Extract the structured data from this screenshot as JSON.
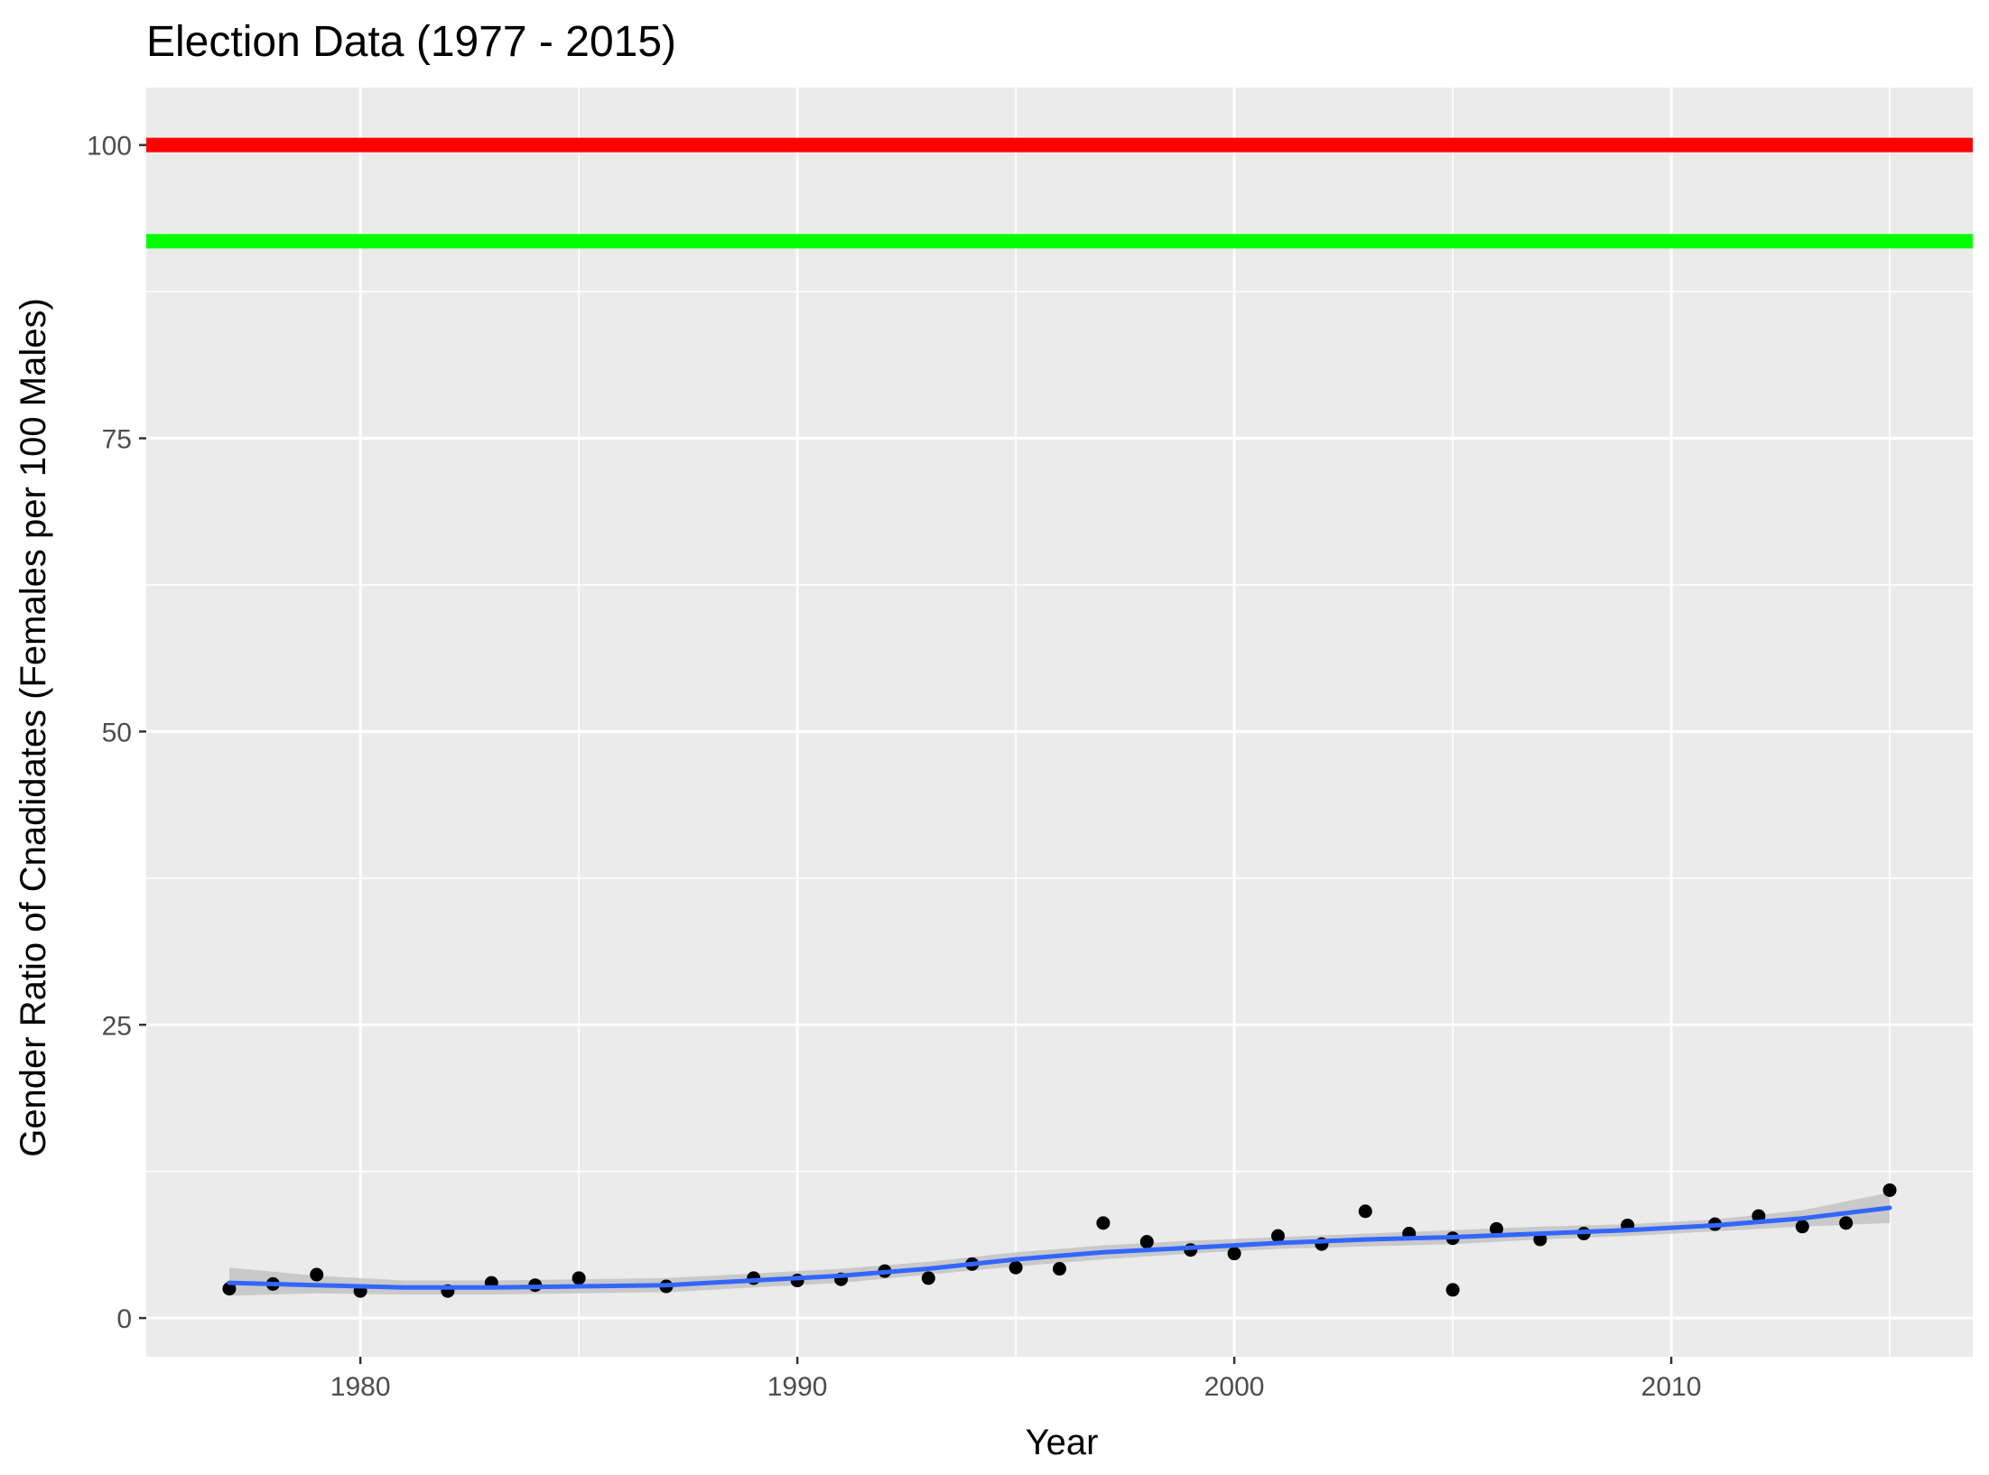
{
  "chart_data": {
    "type": "scatter",
    "title": "Election Data (1977 - 2015)",
    "xlabel": "Year",
    "ylabel": "Gender Ratio of Cnadidates (Females per 100 Males)",
    "xlim": [
      1975.1,
      2016.9
    ],
    "ylim": [
      -3.3,
      104.9
    ],
    "x_ticks": [
      1980,
      1990,
      2000,
      2010
    ],
    "y_ticks": [
      0,
      25,
      50,
      75,
      100
    ],
    "x_tick_labels": [
      "1980",
      "1990",
      "2000",
      "2010"
    ],
    "y_tick_labels": [
      "0",
      "25",
      "50",
      "75",
      "100"
    ],
    "grid": true,
    "panel_background": "#ebebeb",
    "reference_lines": [
      {
        "y": 100,
        "color": "#ff0000"
      },
      {
        "y": 91.8,
        "color": "#00ff00"
      }
    ],
    "points": {
      "color": "#000000",
      "x": [
        1977,
        1978,
        1979,
        1980,
        1982,
        1983,
        1984,
        1985,
        1987,
        1989,
        1990,
        1991,
        1992,
        1993,
        1994,
        1995,
        1996,
        1997,
        1998,
        1999,
        2000,
        2001,
        2002,
        2003,
        2004,
        2005,
        2005,
        2006,
        2007,
        2008,
        2009,
        2011,
        2012,
        2013,
        2014,
        2015
      ],
      "y": [
        2.5,
        2.9,
        3.7,
        2.3,
        2.3,
        3.0,
        2.8,
        3.4,
        2.7,
        3.4,
        3.2,
        3.3,
        4.0,
        3.4,
        4.6,
        4.3,
        4.2,
        8.1,
        6.5,
        5.8,
        5.5,
        7.0,
        6.3,
        9.1,
        7.2,
        2.4,
        6.8,
        7.6,
        6.7,
        7.2,
        7.9,
        8.0,
        8.7,
        7.8,
        8.1,
        10.9
      ]
    },
    "smooth": {
      "color": "#3366ff",
      "band_color": "#bdbdbd",
      "x": [
        1977,
        1979,
        1981,
        1983,
        1985,
        1987,
        1989,
        1991,
        1993,
        1995,
        1997,
        1999,
        2001,
        2003,
        2005,
        2007,
        2009,
        2011,
        2013,
        2015
      ],
      "y": [
        3.0,
        2.8,
        2.6,
        2.6,
        2.7,
        2.8,
        3.2,
        3.6,
        4.2,
        5.0,
        5.6,
        6.0,
        6.4,
        6.7,
        6.9,
        7.2,
        7.5,
        7.9,
        8.5,
        9.4
      ],
      "lower": [
        1.9,
        2.1,
        2.0,
        2.0,
        2.1,
        2.2,
        2.6,
        3.0,
        3.7,
        4.4,
        5.0,
        5.5,
        5.9,
        6.1,
        6.3,
        6.7,
        7.0,
        7.4,
        7.8,
        8.1
      ],
      "upper": [
        4.3,
        3.6,
        3.2,
        3.2,
        3.3,
        3.4,
        3.8,
        4.2,
        4.8,
        5.6,
        6.2,
        6.6,
        6.9,
        7.2,
        7.5,
        7.8,
        8.0,
        8.4,
        9.2,
        10.7
      ]
    }
  }
}
